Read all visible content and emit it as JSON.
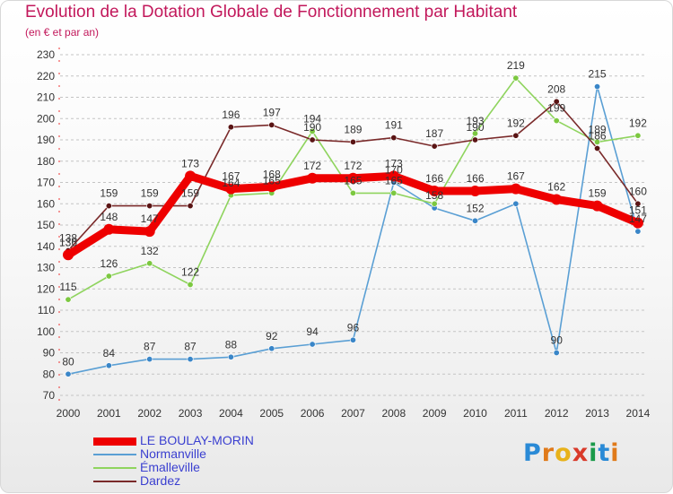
{
  "header": {
    "title": "Evolution de la Dotation Globale de Fonctionnement par Habitant",
    "subtitle": "(en € et par an)"
  },
  "logo": {
    "text": "Proxiti",
    "colors": [
      "#2a8ad6",
      "#e07a1a",
      "#e8b21a",
      "#d93a2a",
      "#1a9a4a",
      "#2a8ad6",
      "#e07a1a"
    ]
  },
  "chart_data": {
    "type": "line",
    "title": "Evolution de la Dotation Globale de Fonctionnement par Habitant",
    "subtitle": "(en € et par an)",
    "xlabel": "",
    "ylabel": "",
    "categories": [
      "2000",
      "2001",
      "2002",
      "2003",
      "2004",
      "2005",
      "2006",
      "2007",
      "2008",
      "2009",
      "2010",
      "2011",
      "2012",
      "2013",
      "2014"
    ],
    "yticks": [
      70,
      80,
      90,
      100,
      110,
      120,
      130,
      140,
      150,
      160,
      170,
      180,
      190,
      200,
      210,
      220,
      230
    ],
    "ylim": [
      70,
      230
    ],
    "grid": "horizontal dashed",
    "legend_position": "bottom-left",
    "series": [
      {
        "name": "Normanville",
        "color": "#5a9fd4",
        "dot_color": "#3a86c8",
        "values": [
          80,
          84,
          87,
          87,
          88,
          92,
          94,
          96,
          170,
          158,
          152,
          160,
          90,
          215,
          147
        ],
        "labels": [
          "80",
          "84",
          "87",
          "87",
          "88",
          "92",
          "94",
          "96",
          "170",
          "158",
          "152",
          "",
          "90",
          "215",
          "147"
        ]
      },
      {
        "name": "Émalleville",
        "color": "#8fd45e",
        "dot_color": "#7cc840",
        "values": [
          115,
          126,
          132,
          122,
          164,
          165,
          194,
          165,
          165,
          160,
          193,
          219,
          199,
          189,
          192
        ],
        "labels": [
          "115",
          "126",
          "132",
          "122",
          "164",
          "165",
          "194",
          "165",
          "165",
          "",
          "193",
          "219",
          "199",
          "189",
          "192"
        ]
      },
      {
        "name": "Dardez",
        "color": "#7a2a2a",
        "dot_color": "#5a1414",
        "values": [
          138,
          159,
          159,
          159,
          196,
          197,
          190,
          189,
          191,
          187,
          190,
          192,
          208,
          186,
          160
        ],
        "labels": [
          "138",
          "159",
          "159",
          "159",
          "196",
          "197",
          "190",
          "189",
          "191",
          "187",
          "190",
          "192",
          "208",
          "186",
          "160"
        ]
      },
      {
        "name": "LE BOULAY-MORIN",
        "color": "#ee0000",
        "dot_color": "#ee0000",
        "values": [
          136,
          148,
          147,
          173,
          167,
          168,
          172,
          172,
          173,
          166,
          166,
          167,
          162,
          159,
          151
        ],
        "labels": [
          "136",
          "148",
          "147",
          "173",
          "167",
          "168",
          "172",
          "172",
          "173",
          "166",
          "166",
          "167",
          "162",
          "159",
          "151"
        ]
      }
    ]
  }
}
